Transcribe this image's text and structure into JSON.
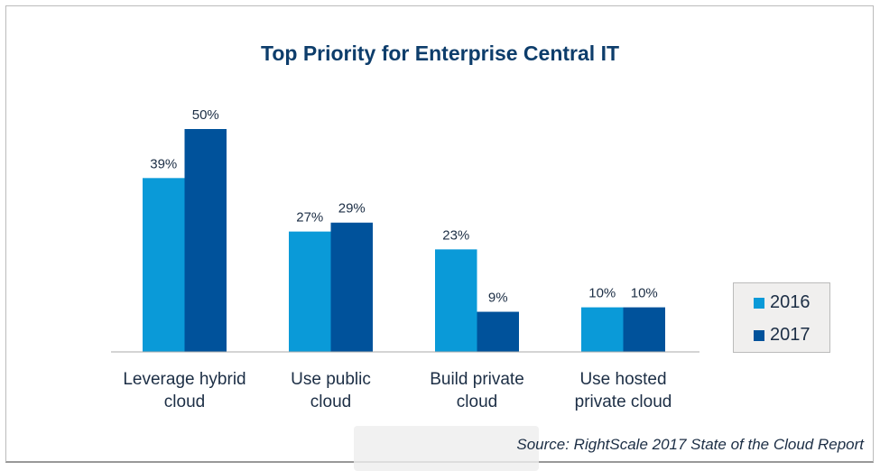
{
  "chart_data": {
    "type": "bar",
    "title": "Top Priority for Enterprise Central IT",
    "categories": [
      [
        "Leverage hybrid",
        "cloud"
      ],
      [
        "Use public",
        "cloud"
      ],
      [
        "Build private",
        "cloud"
      ],
      [
        "Use hosted",
        "private cloud"
      ]
    ],
    "series": [
      {
        "name": "2016",
        "color": "#0a9ad8",
        "values": [
          39,
          27,
          23,
          10
        ]
      },
      {
        "name": "2017",
        "color": "#00529b",
        "values": [
          50,
          29,
          9,
          10
        ]
      }
    ],
    "value_format": "%",
    "ylim": [
      0,
      50
    ],
    "grid": false,
    "legend_position": "right",
    "source": "Source: RightScale 2017 State of the Cloud Report"
  }
}
